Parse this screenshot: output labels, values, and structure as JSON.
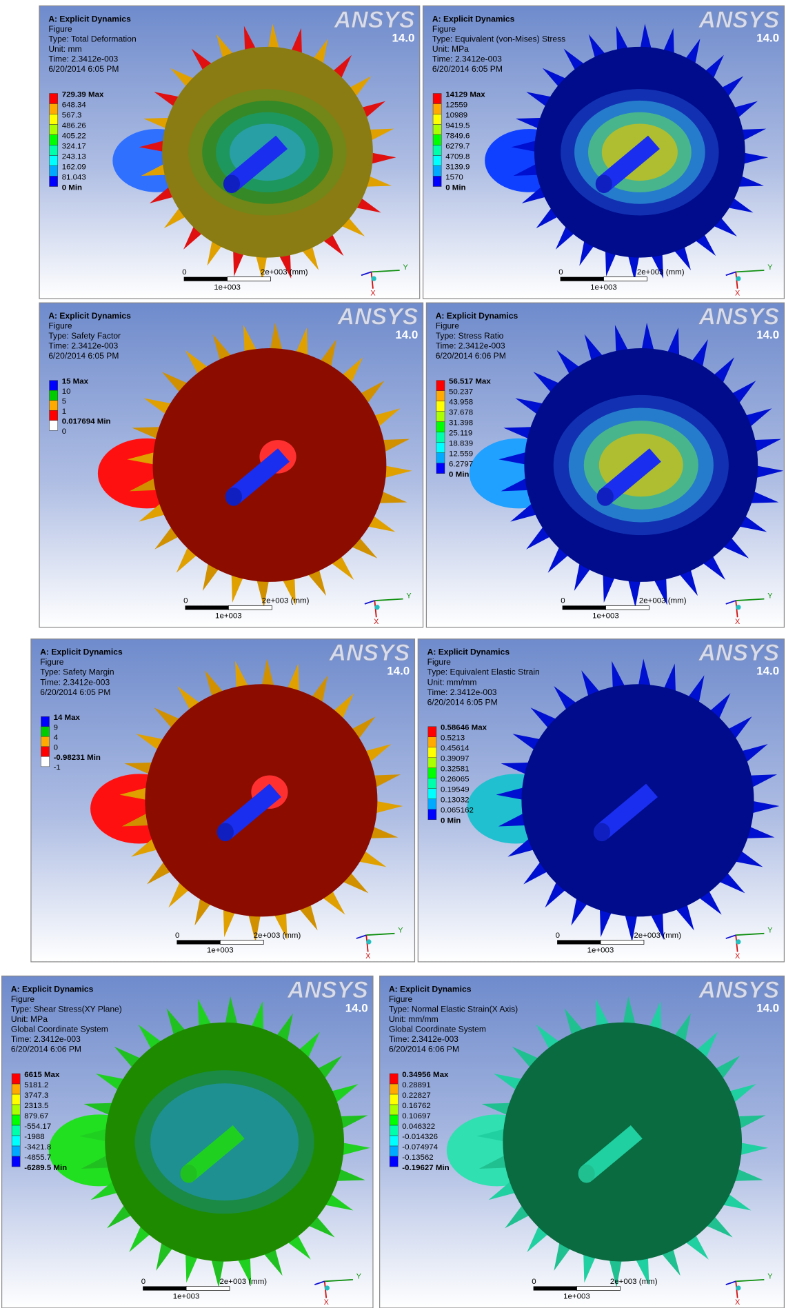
{
  "panels": [
    {
      "header": [
        "A: Explicit Dynamics",
        "Figure",
        "Type: Total Deformation",
        "Unit: mm",
        "Time: 2.3412e-003",
        "6/20/2014 6:05 PM"
      ],
      "logo": "ANSYS",
      "version": "14.0",
      "legend": [
        "729.39 Max",
        "648.34",
        "567.3",
        "486.26",
        "405.22",
        "324.17",
        "243.13",
        "162.09",
        "81.043",
        "0 Min"
      ],
      "scale": {
        "zero": "0",
        "end": "2e+003 (mm)",
        "mid": "1e+003"
      },
      "axes": {
        "y": "Y",
        "x": "X"
      }
    },
    {
      "header": [
        "A: Explicit Dynamics",
        "Figure",
        "Type: Equivalent (von-Mises) Stress",
        "Unit: MPa",
        "Time: 2.3412e-003",
        "6/20/2014 6:05 PM"
      ],
      "logo": "ANSYS",
      "version": "14.0",
      "legend": [
        "14129 Max",
        "12559",
        "10989",
        "9419.5",
        "7849.6",
        "6279.7",
        "4709.8",
        "3139.9",
        "1570",
        "0 Min"
      ],
      "scale": {
        "zero": "0",
        "end": "2e+003 (mm)",
        "mid": "1e+003"
      },
      "axes": {
        "y": "Y",
        "x": "X"
      }
    },
    {
      "header": [
        "A: Explicit Dynamics",
        "Figure",
        "Type: Safety Factor",
        "Time: 2.3412e-003",
        "6/20/2014 6:05 PM"
      ],
      "logo": "ANSYS",
      "version": "14.0",
      "legend": [
        "15 Max",
        "10",
        "5",
        "1",
        "0.017694 Min",
        "0"
      ],
      "scale": {
        "zero": "0",
        "end": "2e+003 (mm)",
        "mid": "1e+003"
      },
      "axes": {
        "y": "Y",
        "x": "X"
      }
    },
    {
      "header": [
        "A: Explicit Dynamics",
        "Figure",
        "Type: Stress Ratio",
        "Time: 2.3412e-003",
        "6/20/2014 6:06 PM"
      ],
      "logo": "ANSYS",
      "version": "14.0",
      "legend": [
        "56.517 Max",
        "50.237",
        "43.958",
        "37.678",
        "31.398",
        "25.119",
        "18.839",
        "12.559",
        "6.2797",
        "0 Min"
      ],
      "scale": {
        "zero": "0",
        "end": "2e+003 (mm)",
        "mid": "1e+003"
      },
      "axes": {
        "y": "Y",
        "x": "X"
      }
    },
    {
      "header": [
        "A: Explicit Dynamics",
        "Figure",
        "Type: Safety Margin",
        "Time: 2.3412e-003",
        "6/20/2014 6:05 PM"
      ],
      "logo": "ANSYS",
      "version": "14.0",
      "legend": [
        "14 Max",
        "9",
        "4",
        "0",
        "-0.98231 Min",
        "-1"
      ],
      "scale": {
        "zero": "0",
        "end": "2e+003 (mm)",
        "mid": "1e+003"
      },
      "axes": {
        "y": "Y",
        "x": "X"
      }
    },
    {
      "header": [
        "A: Explicit Dynamics",
        "Figure",
        "Type: Equivalent Elastic Strain",
        "Unit: mm/mm",
        "Time: 2.3412e-003",
        "6/20/2014 6:05 PM"
      ],
      "logo": "ANSYS",
      "version": "14.0",
      "legend": [
        "0.58646 Max",
        "0.5213",
        "0.45614",
        "0.39097",
        "0.32581",
        "0.26065",
        "0.19549",
        "0.13032",
        "0.065162",
        "0 Min"
      ],
      "scale": {
        "zero": "0",
        "end": "2e+003 (mm)",
        "mid": "1e+003"
      },
      "axes": {
        "y": "Y",
        "x": "X"
      }
    },
    {
      "header": [
        "A: Explicit Dynamics",
        "Figure",
        "Type: Shear Stress(XY Plane)",
        "Unit: MPa",
        "Global Coordinate System",
        "Time: 2.3412e-003",
        "6/20/2014 6:06 PM"
      ],
      "logo": "ANSYS",
      "version": "14.0",
      "legend": [
        "6615 Max",
        "5181.2",
        "3747.3",
        "2313.5",
        "879.67",
        "-554.17",
        "-1988",
        "-3421.8",
        "-4855.7",
        "-6289.5 Min"
      ],
      "scale": {
        "zero": "0",
        "end": "2e+003 (mm)",
        "mid": "1e+003"
      },
      "axes": {
        "y": "Y",
        "x": "X"
      }
    },
    {
      "header": [
        "A: Explicit Dynamics",
        "Figure",
        "Type: Normal Elastic Strain(X Axis)",
        "Unit: mm/mm",
        "Global Coordinate System",
        "Time: 2.3412e-003",
        "6/20/2014 6:06 PM"
      ],
      "logo": "ANSYS",
      "version": "14.0",
      "legend": [
        "0.34956 Max",
        "0.28891",
        "0.22827",
        "0.16762",
        "0.10697",
        "0.046322",
        "-0.014326",
        "-0.074974",
        "-0.13562",
        "-0.19627 Min"
      ],
      "scale": {
        "zero": "0",
        "end": "2e+003 (mm)",
        "mid": "1e+003"
      },
      "axes": {
        "y": "Y",
        "x": "X"
      }
    }
  ]
}
